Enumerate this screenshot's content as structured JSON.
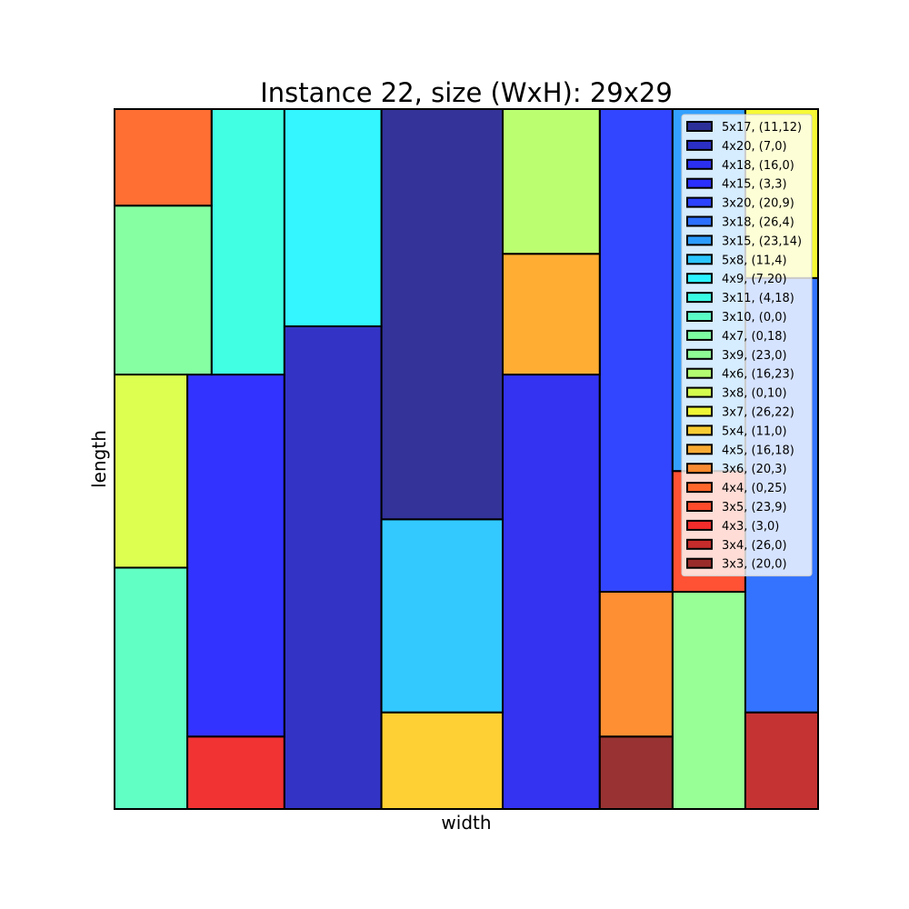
{
  "chart_data": {
    "type": "rectangle-packing",
    "title": "Instance 22, size (WxH): 29x29",
    "xlabel": "width",
    "ylabel": "length",
    "xlim": [
      0,
      29
    ],
    "ylim": [
      0,
      29
    ],
    "grid": false,
    "legend_position": "top-right",
    "rectangles": [
      {
        "label": "5x17, (11,12)",
        "x": 11,
        "y": 12,
        "w": 5,
        "h": 17,
        "color": "#00007f"
      },
      {
        "label": "4x20, (7,0)",
        "x": 7,
        "y": 0,
        "w": 4,
        "h": 20,
        "color": "#0000b6"
      },
      {
        "label": "4x18, (16,0)",
        "x": 16,
        "y": 0,
        "w": 4,
        "h": 18,
        "color": "#0000ee"
      },
      {
        "label": "4x15, (3,3)",
        "x": 3,
        "y": 3,
        "w": 4,
        "h": 15,
        "color": "#0000ff"
      },
      {
        "label": "3x20, (20,9)",
        "x": 20,
        "y": 9,
        "w": 3,
        "h": 20,
        "color": "#0018ff"
      },
      {
        "label": "3x18, (26,4)",
        "x": 26,
        "y": 4,
        "w": 3,
        "h": 18,
        "color": "#0050ff"
      },
      {
        "label": "3x15, (23,14)",
        "x": 23,
        "y": 14,
        "w": 3,
        "h": 15,
        "color": "#0088ff"
      },
      {
        "label": "5x8, (11,4)",
        "x": 11,
        "y": 4,
        "w": 5,
        "h": 8,
        "color": "#00bcff"
      },
      {
        "label": "4x9, (7,20)",
        "x": 7,
        "y": 20,
        "w": 4,
        "h": 9,
        "color": "#00f4ff"
      },
      {
        "label": "3x11, (4,18)",
        "x": 4,
        "y": 18,
        "w": 3,
        "h": 11,
        "color": "#12ffdc"
      },
      {
        "label": "3x10, (0,0)",
        "x": 0,
        "y": 0,
        "w": 3,
        "h": 10,
        "color": "#3bffb5"
      },
      {
        "label": "4x7, (0,18)",
        "x": 0,
        "y": 18,
        "w": 4,
        "h": 7,
        "color": "#66ff8a"
      },
      {
        "label": "3x9, (23,0)",
        "x": 23,
        "y": 0,
        "w": 3,
        "h": 9,
        "color": "#7dff7a"
      },
      {
        "label": "4x6, (16,23)",
        "x": 16,
        "y": 23,
        "w": 4,
        "h": 6,
        "color": "#aaff4d"
      },
      {
        "label": "3x8, (0,10)",
        "x": 0,
        "y": 10,
        "w": 3,
        "h": 8,
        "color": "#d4ff23"
      },
      {
        "label": "3x7, (26,22)",
        "x": 26,
        "y": 22,
        "w": 3,
        "h": 7,
        "color": "#f4f802"
      },
      {
        "label": "5x4, (11,0)",
        "x": 11,
        "y": 0,
        "w": 5,
        "h": 4,
        "color": "#ffc400"
      },
      {
        "label": "4x5, (16,18)",
        "x": 16,
        "y": 18,
        "w": 4,
        "h": 5,
        "color": "#ff9a00"
      },
      {
        "label": "3x6, (20,3)",
        "x": 20,
        "y": 3,
        "w": 3,
        "h": 6,
        "color": "#ff7300"
      },
      {
        "label": "4x4, (0,25)",
        "x": 0,
        "y": 25,
        "w": 4,
        "h": 4,
        "color": "#ff4a00"
      },
      {
        "label": "3x5, (23,9)",
        "x": 23,
        "y": 9,
        "w": 3,
        "h": 5,
        "color": "#ff2500"
      },
      {
        "label": "4x3, (3,0)",
        "x": 3,
        "y": 0,
        "w": 4,
        "h": 3,
        "color": "#ee0000"
      },
      {
        "label": "3x4, (26,0)",
        "x": 26,
        "y": 0,
        "w": 3,
        "h": 4,
        "color": "#b70000"
      },
      {
        "label": "3x3, (20,0)",
        "x": 20,
        "y": 0,
        "w": 3,
        "h": 3,
        "color": "#7f0000"
      }
    ]
  }
}
